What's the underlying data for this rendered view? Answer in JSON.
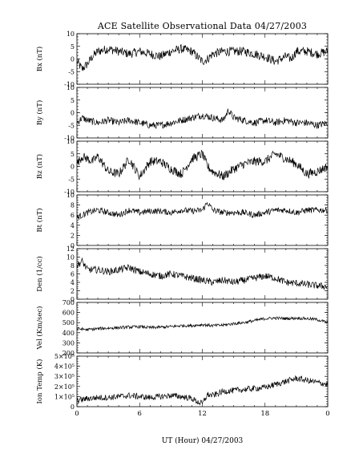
{
  "figure": {
    "title": "ACE Satellite Observational Data   04/27/2003",
    "xlabel": "UT (Hour)   04/27/2003",
    "x_ticks": [
      "0",
      "6",
      "12",
      "18",
      "0"
    ]
  },
  "colors": {
    "line": "#000000",
    "axis": "#000000",
    "background": "#ffffff"
  },
  "chart_data": [
    {
      "type": "line",
      "ylabel": "Bx (nT)",
      "ylim": [
        -10,
        10
      ],
      "yticks": [
        "-10",
        "-5",
        "0",
        "5",
        "10"
      ],
      "xlim": [
        0,
        24
      ],
      "x": [
        0,
        0.5,
        1,
        1.5,
        2,
        3,
        4,
        5,
        6,
        7,
        8,
        9,
        10,
        11,
        12,
        12.5,
        13,
        14,
        15,
        16,
        17,
        18,
        19,
        20,
        20.5,
        21,
        22,
        23,
        24
      ],
      "values": [
        -1,
        -4,
        -2,
        1,
        3,
        4,
        3,
        2,
        3,
        2,
        1,
        3,
        4,
        3,
        -1,
        0,
        2,
        3,
        3,
        3,
        2,
        1,
        -1,
        1,
        0,
        3,
        3,
        2,
        3
      ]
    },
    {
      "type": "line",
      "ylabel": "By (nT)",
      "ylim": [
        -10,
        10
      ],
      "yticks": [
        "-10",
        "-5",
        "0",
        "5",
        "10"
      ],
      "xlim": [
        0,
        24
      ],
      "x": [
        0,
        0.5,
        1,
        2,
        3,
        4,
        5,
        6,
        7,
        8,
        9,
        10,
        11,
        12,
        13,
        14,
        14.5,
        15,
        16,
        17,
        18,
        19,
        20,
        21,
        22,
        23,
        24
      ],
      "values": [
        -4,
        -2,
        -3,
        -4,
        -3,
        -4,
        -3,
        -4,
        -5,
        -5,
        -4,
        -3,
        -2,
        -1,
        -2,
        -3,
        1,
        -2,
        -3,
        -4,
        -3,
        -4,
        -3,
        -4,
        -4,
        -5,
        -4
      ]
    },
    {
      "type": "line",
      "ylabel": "Bz (nT)",
      "ylim": [
        -10,
        10
      ],
      "yticks": [
        "-10",
        "-5",
        "0",
        "5",
        "10"
      ],
      "xlim": [
        0,
        24
      ],
      "x": [
        0,
        0.5,
        1,
        1.5,
        2,
        2.5,
        3,
        4,
        5,
        6,
        7,
        8,
        9,
        10,
        11,
        12,
        12.5,
        13,
        14,
        15,
        16,
        17,
        18,
        19,
        20,
        21,
        22,
        23,
        24
      ],
      "values": [
        1,
        4,
        3,
        2,
        4,
        1,
        -2,
        -3,
        3,
        -4,
        2,
        2,
        -1,
        -3,
        3,
        5,
        0,
        -2,
        -4,
        -1,
        1,
        2,
        2,
        5,
        3,
        1,
        -3,
        -2,
        0
      ]
    },
    {
      "type": "line",
      "ylabel": "Bt (nT)",
      "ylim": [
        0,
        10
      ],
      "yticks": [
        "0",
        "2",
        "4",
        "6",
        "8",
        "10"
      ],
      "xlim": [
        0,
        24
      ],
      "x": [
        0,
        1,
        2,
        3,
        4,
        5,
        6,
        7,
        8,
        9,
        10,
        11,
        12,
        12.5,
        13,
        14,
        15,
        16,
        17,
        18,
        19,
        20,
        21,
        22,
        23,
        24
      ],
      "values": [
        5.5,
        6.5,
        7,
        6.5,
        6,
        7,
        6.5,
        6.8,
        6.8,
        6.5,
        7,
        6.8,
        7,
        8.5,
        7,
        6.5,
        6.5,
        6.5,
        6,
        6.5,
        7,
        7,
        6.5,
        7,
        7,
        7
      ]
    },
    {
      "type": "line",
      "ylabel": "Den (1/cc)",
      "ylim": [
        0,
        12
      ],
      "yticks": [
        "0",
        "2",
        "4",
        "6",
        "8",
        "10",
        "12"
      ],
      "xlim": [
        0,
        24
      ],
      "x": [
        0,
        0.5,
        1,
        2,
        3,
        4,
        5,
        6,
        7,
        8,
        9,
        10,
        11,
        12,
        13,
        14,
        15,
        16,
        17,
        18,
        19,
        20,
        21,
        22,
        23,
        24
      ],
      "values": [
        8,
        9,
        7,
        7,
        6.5,
        7,
        7.5,
        6.5,
        6,
        5.5,
        6,
        5.5,
        5,
        4.5,
        4,
        4.5,
        4,
        4.5,
        5,
        5.5,
        5,
        4,
        3.8,
        3.5,
        3.2,
        3
      ]
    },
    {
      "type": "line",
      "ylabel": "Vel (Km/sec)",
      "ylim": [
        200,
        700
      ],
      "yticks": [
        "200",
        "300",
        "400",
        "500",
        "600",
        "700"
      ],
      "xlim": [
        0,
        24
      ],
      "x": [
        0,
        1,
        2,
        3,
        4,
        5,
        6,
        7,
        8,
        9,
        10,
        11,
        12,
        13,
        14,
        15,
        16,
        17,
        18,
        19,
        20,
        21,
        22,
        23,
        24
      ],
      "values": [
        440,
        430,
        440,
        445,
        450,
        455,
        460,
        450,
        455,
        460,
        470,
        470,
        480,
        470,
        475,
        490,
        500,
        520,
        540,
        545,
        540,
        545,
        540,
        530,
        500
      ]
    },
    {
      "type": "line",
      "ylabel": "Ion Temp (K)",
      "ylim": [
        0,
        500000
      ],
      "yticks": [
        "0",
        "1×10⁵",
        "2×10⁵",
        "3×10⁵",
        "4×10⁵",
        "5×10⁵"
      ],
      "xlim": [
        0,
        24
      ],
      "x": [
        0,
        1,
        2,
        3,
        4,
        5,
        6,
        7,
        8,
        9,
        10,
        11,
        11.5,
        12,
        12.5,
        13,
        14,
        15,
        16,
        17,
        18,
        19,
        20,
        21,
        22,
        23,
        24
      ],
      "values": [
        60000,
        80000,
        90000,
        90000,
        100000,
        110000,
        100000,
        90000,
        100000,
        110000,
        100000,
        80000,
        50000,
        30000,
        120000,
        110000,
        150000,
        160000,
        170000,
        180000,
        190000,
        220000,
        250000,
        280000,
        260000,
        240000,
        220000
      ]
    }
  ]
}
